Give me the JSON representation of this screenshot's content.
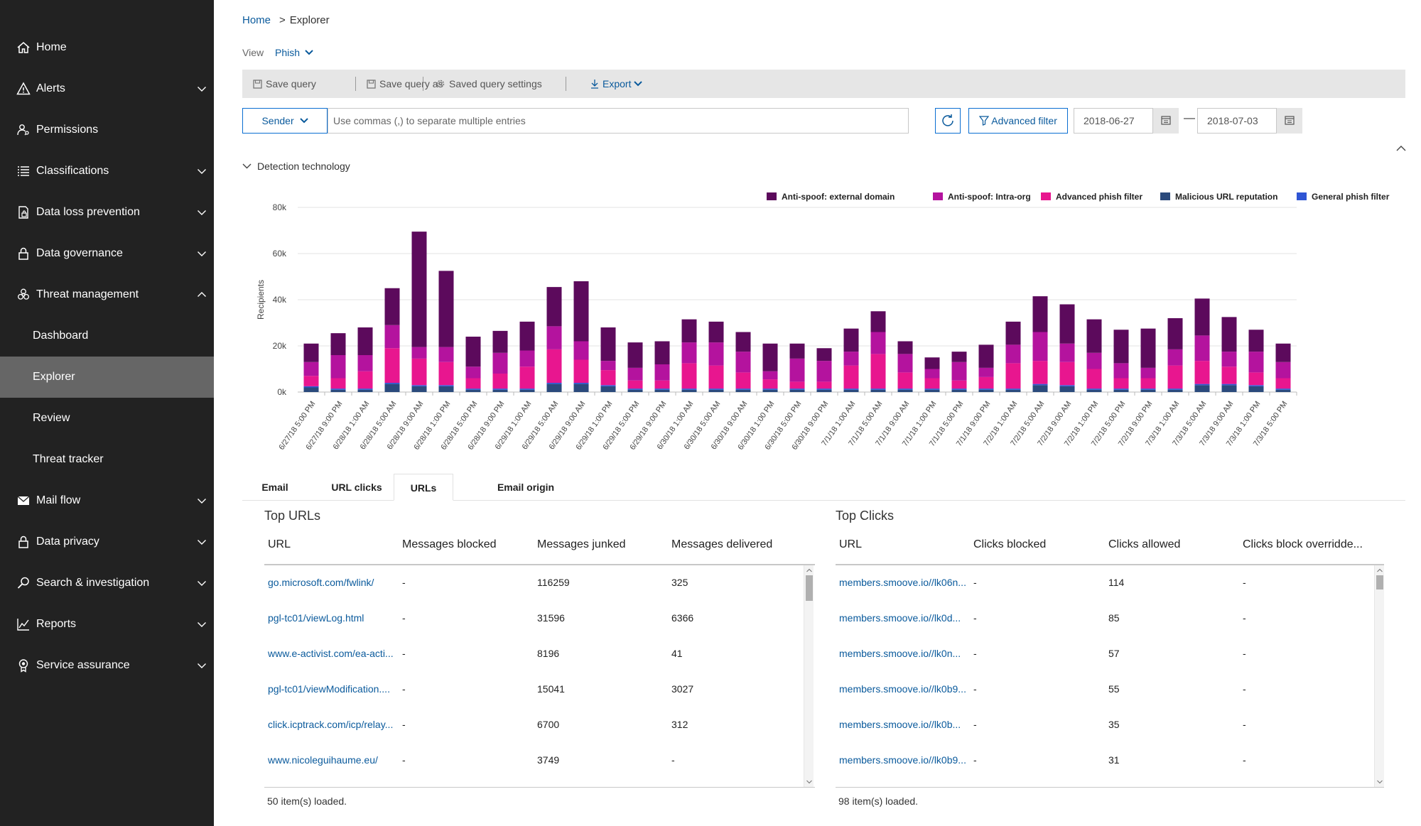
{
  "sidebar": {
    "items": [
      {
        "label": "Home",
        "icon": "home-icon",
        "chevron": false
      },
      {
        "label": "Alerts",
        "icon": "alert-icon",
        "chevron": "down"
      },
      {
        "label": "Permissions",
        "icon": "permissions-icon",
        "chevron": false
      },
      {
        "label": "Classifications",
        "icon": "list-icon",
        "chevron": "down"
      },
      {
        "label": "Data loss prevention",
        "icon": "dlp-icon",
        "chevron": "down"
      },
      {
        "label": "Data governance",
        "icon": "lock-icon",
        "chevron": "down"
      },
      {
        "label": "Threat management",
        "icon": "biohazard-icon",
        "chevron": "up"
      },
      {
        "label": "Dashboard",
        "sub": true
      },
      {
        "label": "Explorer",
        "sub": true,
        "active": true
      },
      {
        "label": "Review",
        "sub": true
      },
      {
        "label": "Threat tracker",
        "sub": true
      },
      {
        "label": "Mail flow",
        "icon": "mail-icon",
        "chevron": "down"
      },
      {
        "label": "Data privacy",
        "icon": "lock-icon",
        "chevron": "down"
      },
      {
        "label": "Search & investigation",
        "icon": "search-icon",
        "chevron": "down"
      },
      {
        "label": "Reports",
        "icon": "chart-icon",
        "chevron": "down"
      },
      {
        "label": "Service assurance",
        "icon": "badge-icon",
        "chevron": "down"
      }
    ]
  },
  "breadcrumb": {
    "home": "Home",
    "separator": ">",
    "current": "Explorer"
  },
  "view": {
    "label": "View",
    "value": "Phish"
  },
  "toolbar": {
    "save_query": "Save query",
    "save_query_as": "Save query as",
    "saved_query_settings": "Saved query settings",
    "export": "Export"
  },
  "filter": {
    "sender": "Sender",
    "search_placeholder": "Use commas (,) to separate multiple entries",
    "advanced_filter": "Advanced filter",
    "date_from": "2018-06-27",
    "date_separator": "—",
    "date_to": "2018-07-03"
  },
  "section_title": "Detection technology",
  "colors": {
    "anti_spoof_external": "#5c0a5c",
    "anti_spoof_intra": "#b4139e",
    "advanced_phish": "#e8168f",
    "malicious_url": "#2b4a7c",
    "general_phish": "#2f55d4",
    "link": "#0a5a9c",
    "sidebar": "#222222",
    "sidebar_active": "#666666"
  },
  "chart_data": {
    "type": "bar",
    "stacked": true,
    "ylabel": "Recipients",
    "ylim": [
      0,
      80000
    ],
    "yticks": [
      "0k",
      "20k",
      "40k",
      "60k",
      "80k"
    ],
    "grid": true,
    "legend_placement": "top-right",
    "categories": [
      "6/27/18 5:00 PM",
      "6/27/18 9:00 PM",
      "6/28/18 1:00 AM",
      "6/28/18 5:00 AM",
      "6/28/18 9:00 AM",
      "6/28/18 1:00 PM",
      "6/28/18 5:00 PM",
      "6/28/18 9:00 PM",
      "6/29/18 1:00 AM",
      "6/29/18 5:00 AM",
      "6/29/18 9:00 AM",
      "6/29/18 1:00 PM",
      "6/29/18 5:00 PM",
      "6/29/18 9:00 PM",
      "6/30/18 1:00 AM",
      "6/30/18 5:00 AM",
      "6/30/18 9:00 AM",
      "6/30/18 1:00 PM",
      "6/30/18 5:00 PM",
      "6/30/18 9:00 PM",
      "7/1/18 1:00 AM",
      "7/1/18 5:00 AM",
      "7/1/18 9:00 AM",
      "7/1/18 1:00 PM",
      "7/1/18 5:00 PM",
      "7/1/18 9:00 PM",
      "7/2/18 1:00 AM",
      "7/2/18 5:00 AM",
      "7/2/18 9:00 AM",
      "7/2/18 1:00 PM",
      "7/2/18 5:00 PM",
      "7/2/18 9:00 PM",
      "7/3/18 1:00 AM",
      "7/3/18 5:00 AM",
      "7/3/18 9:00 AM",
      "7/3/18 1:00 PM",
      "7/3/18 5:00 PM"
    ],
    "series": [
      {
        "name": "Malicious URL reputation",
        "color_key": "malicious_url",
        "values": [
          2000,
          1000,
          1000,
          3500,
          2500,
          2500,
          1000,
          1000,
          1000,
          3500,
          3500,
          2500,
          1000,
          1000,
          1000,
          1000,
          1000,
          1000,
          1000,
          1000,
          1000,
          1000,
          1000,
          1000,
          1000,
          1000,
          1000,
          3000,
          2500,
          1000,
          1000,
          1000,
          1000,
          3000,
          3000,
          2500,
          1000
        ]
      },
      {
        "name": "General phish filter",
        "color_key": "general_phish",
        "values": [
          500,
          500,
          500,
          500,
          500,
          500,
          500,
          500,
          500,
          500,
          500,
          500,
          500,
          500,
          500,
          500,
          500,
          500,
          500,
          500,
          500,
          500,
          500,
          500,
          500,
          500,
          500,
          500,
          500,
          500,
          500,
          500,
          500,
          500,
          500,
          500,
          500
        ]
      },
      {
        "name": "Advanced phish filter",
        "color_key": "advanced_phish",
        "values": [
          4500,
          4500,
          7500,
          15000,
          11500,
          10000,
          4500,
          6500,
          9500,
          14500,
          10000,
          6500,
          3500,
          3500,
          11000,
          10000,
          7000,
          4000,
          3000,
          3000,
          10000,
          15000,
          7000,
          4500,
          3500,
          5000,
          11000,
          10000,
          10000,
          8500,
          4500,
          4500,
          10000,
          10000,
          7500,
          5500,
          4500
        ]
      },
      {
        "name": "Anti-spoof: Intra-org",
        "color_key": "anti_spoof_intra",
        "values": [
          6000,
          10000,
          7000,
          10000,
          5000,
          6500,
          5000,
          9000,
          7000,
          10000,
          8000,
          4000,
          5500,
          7000,
          9000,
          10000,
          9000,
          3500,
          10000,
          9000,
          6000,
          9500,
          8000,
          4000,
          8000,
          4000,
          8000,
          12500,
          8000,
          7000,
          6500,
          4500,
          7000,
          11000,
          6500,
          9000,
          7000
        ]
      },
      {
        "name": "Anti-spoof: external domain",
        "color_key": "anti_spoof_external",
        "values": [
          8000,
          9500,
          12000,
          16000,
          50000,
          33000,
          13000,
          9500,
          12500,
          17000,
          26000,
          14500,
          11000,
          10000,
          10000,
          9000,
          8500,
          12000,
          6500,
          5500,
          10000,
          9000,
          5500,
          5000,
          4500,
          10000,
          10000,
          15500,
          17000,
          14500,
          14500,
          17000,
          13500,
          16000,
          15000,
          9500,
          8000
        ]
      }
    ]
  },
  "tabs": [
    "Email",
    "URL clicks",
    "URLs",
    "Email origin"
  ],
  "top_urls": {
    "title": "Top URLs",
    "columns": [
      "URL",
      "Messages blocked",
      "Messages junked",
      "Messages delivered"
    ],
    "rows": [
      [
        "go.microsoft.com/fwlink/",
        "-",
        "116259",
        "325"
      ],
      [
        "pgl-tc01/viewLog.html",
        "-",
        "31596",
        "6366"
      ],
      [
        "www.e-activist.com/ea-acti...",
        "-",
        "8196",
        "41"
      ],
      [
        "pgl-tc01/viewModification....",
        "-",
        "15041",
        "3027"
      ],
      [
        "click.icptrack.com/icp/relay...",
        "-",
        "6700",
        "312"
      ],
      [
        "www.nicoleguihaume.eu/",
        "-",
        "3749",
        "-"
      ]
    ],
    "footer": "50 item(s) loaded."
  },
  "top_clicks": {
    "title": "Top Clicks",
    "columns": [
      "URL",
      "Clicks blocked",
      "Clicks allowed",
      "Clicks block overridde..."
    ],
    "rows": [
      [
        "members.smoove.io//lk06n...",
        "-",
        "114",
        "-"
      ],
      [
        "members.smoove.io//lk0d...",
        "-",
        "85",
        "-"
      ],
      [
        "members.smoove.io//lk0n...",
        "-",
        "57",
        "-"
      ],
      [
        "members.smoove.io//lk0b9...",
        "-",
        "55",
        "-"
      ],
      [
        "members.smoove.io//lk0b...",
        "-",
        "35",
        "-"
      ],
      [
        "members.smoove.io//lk0b9...",
        "-",
        "31",
        "-"
      ]
    ],
    "footer": "98 item(s) loaded."
  }
}
